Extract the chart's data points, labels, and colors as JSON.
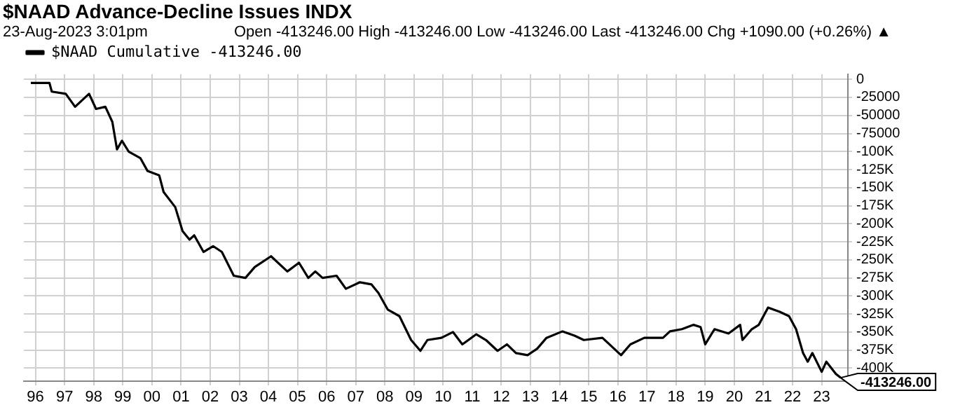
{
  "chart_data": {
    "type": "line",
    "title": "$NAAD Advance-Decline Issues INDX",
    "subtitle": "23-Aug-2023 3:01pm",
    "annotations": [
      "Open -413246.00  High -413246.00  Low -413246.00  Last -413246.00  Chg +1090.00 (+0.26%) ▲",
      {
        "text": "-413246.00",
        "x": 2023.65,
        "y": -413246
      }
    ],
    "x": [
      1995.84,
      1996.48,
      1996.56,
      1997.04,
      1997.36,
      1997.84,
      1998.08,
      1998.4,
      1998.64,
      1998.8,
      1998.97,
      1999.2,
      1999.6,
      1999.85,
      2000.25,
      2000.4,
      2000.8,
      2001.05,
      2001.29,
      2001.45,
      2001.77,
      2002.1,
      2002.4,
      2002.81,
      2003.21,
      2003.53,
      2004.09,
      2004.65,
      2005.05,
      2005.37,
      2005.61,
      2005.86,
      2006.34,
      2006.66,
      2007.14,
      2007.54,
      2007.78,
      2008.1,
      2008.5,
      2008.9,
      2009.22,
      2009.46,
      2009.94,
      2010.34,
      2010.66,
      2011.14,
      2011.47,
      2011.87,
      2012.19,
      2012.5,
      2012.9,
      2013.23,
      2013.55,
      2014.1,
      2014.51,
      2014.83,
      2015.47,
      2015.71,
      2016.11,
      2016.43,
      2016.91,
      2017.55,
      2017.79,
      2018.2,
      2018.6,
      2018.84,
      2019.0,
      2019.32,
      2019.8,
      2020.2,
      2020.28,
      2020.6,
      2020.84,
      2021.16,
      2021.56,
      2021.88,
      2022.12,
      2022.36,
      2022.52,
      2022.68,
      2023.0,
      2023.16,
      2023.49,
      2023.65
    ],
    "series": [
      {
        "name": "$NAAD Cumulative -413246.00",
        "color": "#000000",
        "values": [
          -5000,
          -5000,
          -17000,
          -20000,
          -38000,
          -20000,
          -41000,
          -38000,
          -59000,
          -97000,
          -85000,
          -100000,
          -109000,
          -127000,
          -133000,
          -156000,
          -177000,
          -210000,
          -222000,
          -216000,
          -239000,
          -231000,
          -239000,
          -272000,
          -275000,
          -260000,
          -245000,
          -266000,
          -254000,
          -275000,
          -266000,
          -275000,
          -272000,
          -290000,
          -281000,
          -284000,
          -296000,
          -319000,
          -328000,
          -361000,
          -376000,
          -361000,
          -358000,
          -350000,
          -367000,
          -353000,
          -361000,
          -376000,
          -367000,
          -379000,
          -382000,
          -373000,
          -358000,
          -349000,
          -355000,
          -361000,
          -358000,
          -367000,
          -382000,
          -367000,
          -358000,
          -358000,
          -349000,
          -346000,
          -340000,
          -343000,
          -367000,
          -346000,
          -352000,
          -340000,
          -361000,
          -346000,
          -340000,
          -316000,
          -322000,
          -328000,
          -346000,
          -379000,
          -391000,
          -379000,
          -405000,
          -391000,
          -408000,
          -413246
        ]
      }
    ],
    "xlim": [
      1995.6,
      2023.9
    ],
    "xticks": [
      {
        "value": 1996,
        "label": "96"
      },
      {
        "value": 1997,
        "label": "97"
      },
      {
        "value": 1998,
        "label": "98"
      },
      {
        "value": 1999,
        "label": "99"
      },
      {
        "value": 2000,
        "label": "00"
      },
      {
        "value": 2001,
        "label": "01"
      },
      {
        "value": 2002,
        "label": "02"
      },
      {
        "value": 2003,
        "label": "03"
      },
      {
        "value": 2004,
        "label": "04"
      },
      {
        "value": 2005,
        "label": "05"
      },
      {
        "value": 2006,
        "label": "06"
      },
      {
        "value": 2007,
        "label": "07"
      },
      {
        "value": 2008,
        "label": "08"
      },
      {
        "value": 2009,
        "label": "09"
      },
      {
        "value": 2010,
        "label": "10"
      },
      {
        "value": 2011,
        "label": "11"
      },
      {
        "value": 2012,
        "label": "12"
      },
      {
        "value": 2013,
        "label": "13"
      },
      {
        "value": 2014,
        "label": "14"
      },
      {
        "value": 2015,
        "label": "15"
      },
      {
        "value": 2016,
        "label": "16"
      },
      {
        "value": 2017,
        "label": "17"
      },
      {
        "value": 2018,
        "label": "18"
      },
      {
        "value": 2019,
        "label": "19"
      },
      {
        "value": 2020,
        "label": "20"
      },
      {
        "value": 2021,
        "label": "21"
      },
      {
        "value": 2022,
        "label": "22"
      },
      {
        "value": 2023,
        "label": "23"
      }
    ],
    "ylim": [
      -418000,
      7000
    ],
    "yticks": [
      0,
      -25000,
      -50000,
      -75000,
      {
        "value": -100000,
        "label": "-100K"
      },
      {
        "value": -125000,
        "label": "-125K"
      },
      {
        "value": -150000,
        "label": "-150K"
      },
      {
        "value": -175000,
        "label": "-175K"
      },
      {
        "value": -200000,
        "label": "-200K"
      },
      {
        "value": -225000,
        "label": "-225K"
      },
      {
        "value": -250000,
        "label": "-250K"
      },
      {
        "value": -275000,
        "label": "-275K"
      },
      {
        "value": -300000,
        "label": "-300K"
      },
      {
        "value": -325000,
        "label": "-325K"
      },
      {
        "value": -350000,
        "label": "-350K"
      },
      {
        "value": -375000,
        "label": "-375K"
      },
      {
        "value": -400000,
        "label": "-400K"
      }
    ],
    "grid": true,
    "legend": "top left",
    "marker": "none",
    "line_style": "solid"
  }
}
